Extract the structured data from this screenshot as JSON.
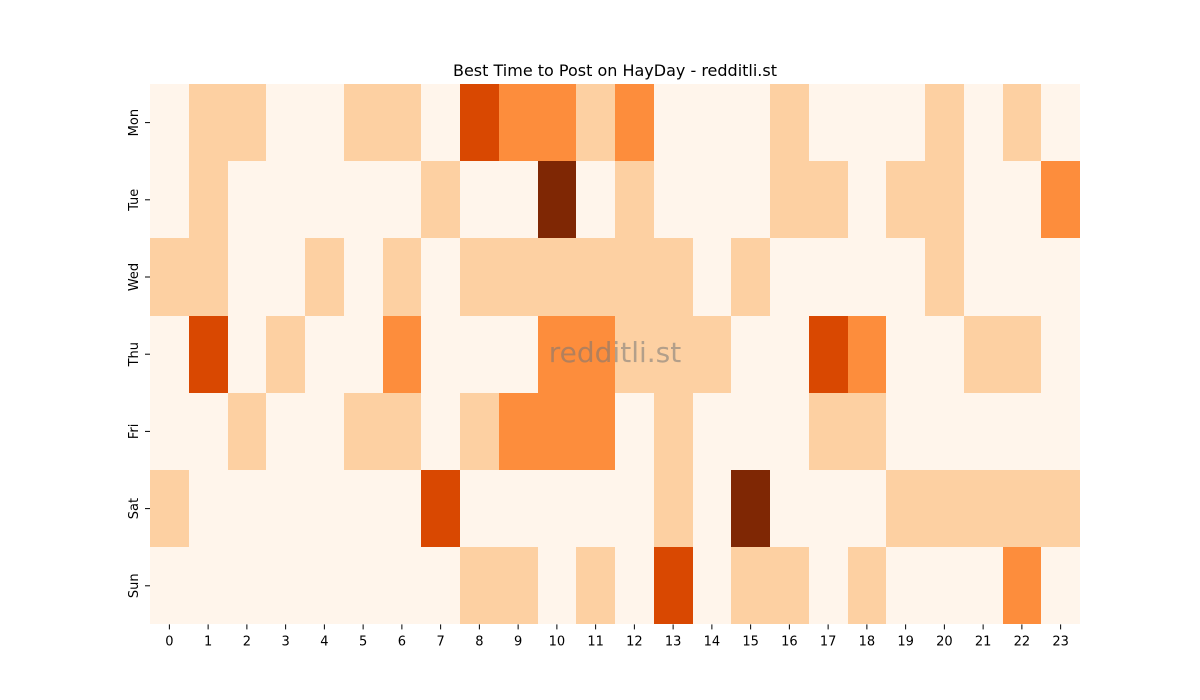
{
  "chart_data": {
    "type": "heatmap",
    "title": "Best Time to Post on HayDay - redditli.st",
    "watermark": "redditli.st",
    "x": [
      "0",
      "1",
      "2",
      "3",
      "4",
      "5",
      "6",
      "7",
      "8",
      "9",
      "10",
      "11",
      "12",
      "13",
      "14",
      "15",
      "16",
      "17",
      "18",
      "19",
      "20",
      "21",
      "22",
      "23"
    ],
    "y": [
      "Mon",
      "Tue",
      "Wed",
      "Thu",
      "Fri",
      "Sat",
      "Sun"
    ],
    "xlabel": "",
    "ylabel": "",
    "colormap": "Oranges",
    "colors": [
      "#fff5eb",
      "#fdd0a2",
      "#fd8d3c",
      "#d94801",
      "#7f2704"
    ],
    "values": [
      [
        0,
        1,
        1,
        0,
        0,
        1,
        1,
        0,
        3,
        2,
        2,
        1,
        2,
        0,
        0,
        0,
        1,
        0,
        0,
        0,
        1,
        0,
        1,
        0
      ],
      [
        0,
        1,
        0,
        0,
        0,
        0,
        0,
        1,
        0,
        0,
        4,
        0,
        1,
        0,
        0,
        0,
        1,
        1,
        0,
        1,
        1,
        0,
        0,
        2
      ],
      [
        1,
        1,
        0,
        0,
        1,
        0,
        1,
        0,
        1,
        1,
        1,
        1,
        1,
        1,
        0,
        1,
        0,
        0,
        0,
        0,
        1,
        0,
        0,
        0
      ],
      [
        0,
        3,
        0,
        1,
        0,
        0,
        2,
        0,
        0,
        0,
        2,
        2,
        1,
        1,
        1,
        0,
        0,
        3,
        2,
        0,
        0,
        1,
        1,
        0
      ],
      [
        0,
        0,
        1,
        0,
        0,
        1,
        1,
        0,
        1,
        2,
        2,
        2,
        0,
        1,
        0,
        0,
        0,
        1,
        1,
        0,
        0,
        0,
        0,
        0
      ],
      [
        1,
        0,
        0,
        0,
        0,
        0,
        0,
        3,
        0,
        0,
        0,
        0,
        0,
        1,
        0,
        4,
        0,
        0,
        0,
        1,
        1,
        1,
        1,
        1
      ],
      [
        0,
        0,
        0,
        0,
        0,
        0,
        0,
        0,
        1,
        1,
        0,
        1,
        0,
        3,
        0,
        1,
        1,
        0,
        1,
        0,
        0,
        0,
        2,
        0
      ]
    ]
  }
}
